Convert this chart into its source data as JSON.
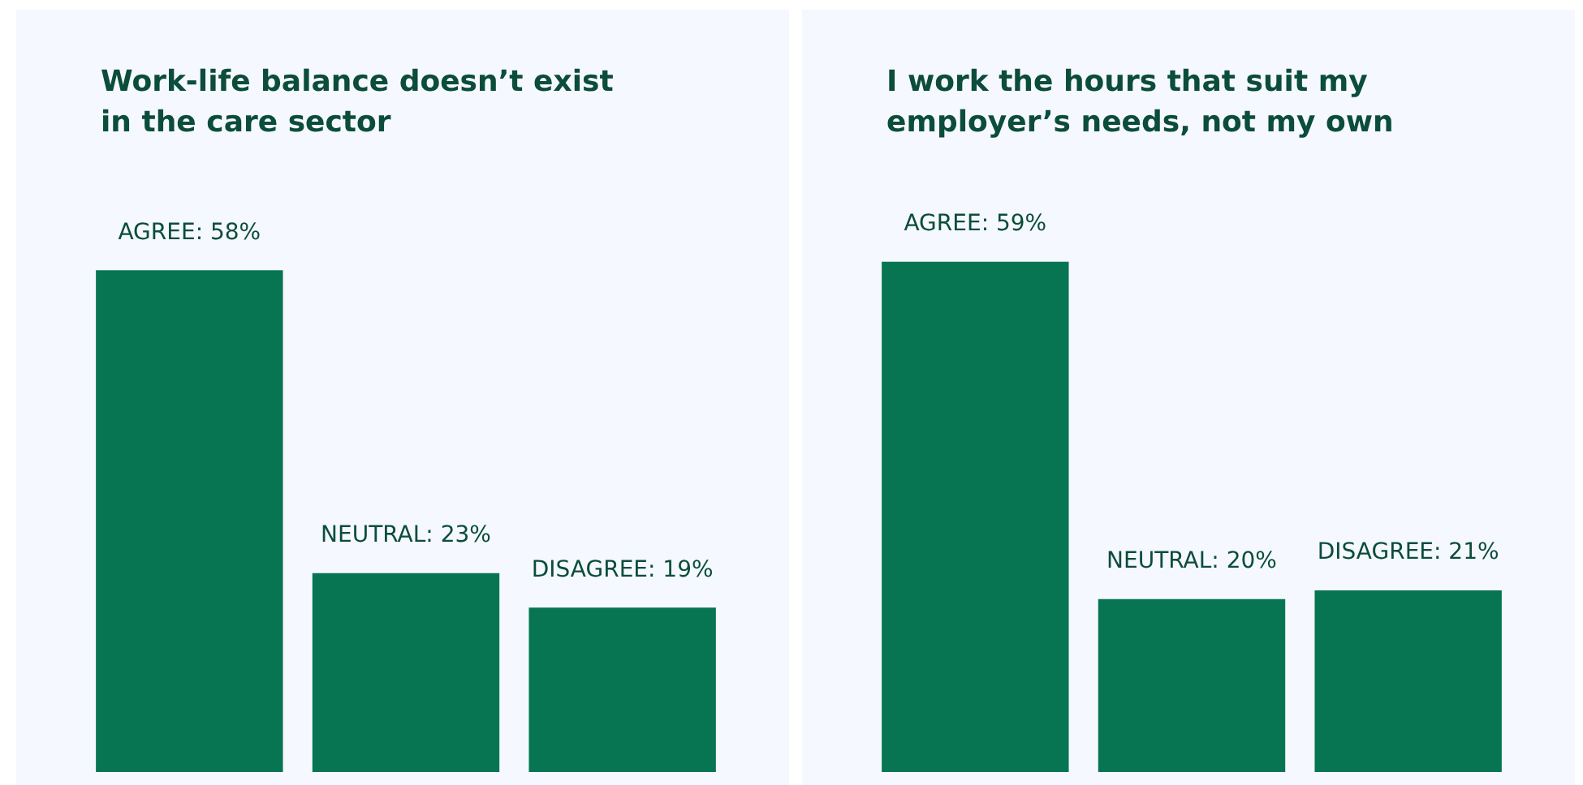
{
  "chart_data": [
    {
      "type": "bar",
      "title": "Work-life balance doesn’t exist in the care sector",
      "categories": [
        null,
        null,
        null
      ],
      "values": [
        58,
        23,
        19
      ],
      "color": "#077552",
      "value_labels": [
        "AGREE: 58%",
        "NEUTRAL: 23%",
        "DISAGREE: 19%"
      ]
    },
    {
      "type": "bar",
      "title": "I work the hours that suit my employer’s needs, not my own",
      "categories": [
        null,
        null,
        null
      ],
      "values": [
        59,
        20,
        21
      ],
      "color": "#077552",
      "value_labels": [
        "AGREE: 59%",
        "NEUTRAL: 20%",
        "DISAGREE: 21%"
      ]
    }
  ]
}
